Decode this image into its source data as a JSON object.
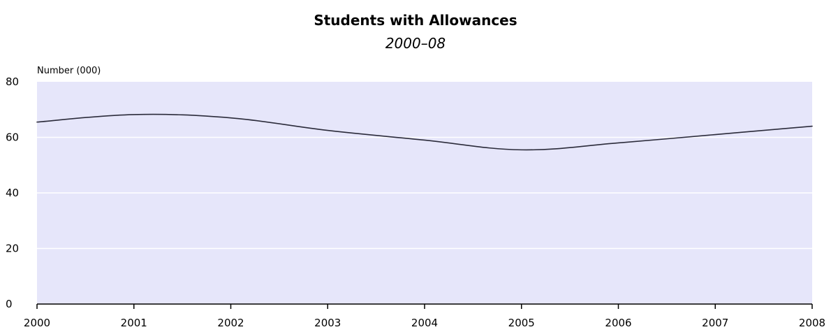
{
  "colors": {
    "plot_background": "#e6e6fa",
    "gridline": "#ffffff",
    "line": "#2b2b3a",
    "axis": "#000000"
  },
  "chart_data": {
    "type": "line",
    "title": "Students with Allowances",
    "subtitle": "2000–08",
    "ylabel": "Number (000)",
    "xlabel": "",
    "x": [
      2000,
      2001,
      2002,
      2003,
      2004,
      2005,
      2006,
      2007,
      2008
    ],
    "x_tick_labels": [
      "2000",
      "2001",
      "2002",
      "2003",
      "2004",
      "2005",
      "2006",
      "2007",
      "2008"
    ],
    "y_ticks": [
      0,
      20,
      40,
      60,
      80
    ],
    "y_tick_labels": [
      "0",
      "20",
      "40",
      "60",
      "80"
    ],
    "ylim": [
      0,
      80
    ],
    "xlim": [
      2000,
      2008
    ],
    "grid": true,
    "legend": "none",
    "series": [
      {
        "values": [
          65.5,
          68.2,
          67.0,
          62.5,
          59.0,
          55.5,
          58.0,
          61.0,
          64.0
        ]
      }
    ]
  }
}
